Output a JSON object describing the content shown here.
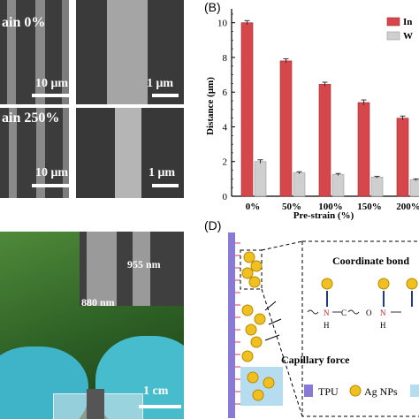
{
  "panel_a": {
    "strain_0_label": "ain 0%",
    "strain_250_label": "ain 250%",
    "scale_10um": "10 μm",
    "scale_1um": "1 μm"
  },
  "panel_c": {
    "dim_top": "955 nm",
    "dim_bottom": "880 nm",
    "scale_1cm": "1 cm"
  },
  "panel_d": {
    "label": "(D)",
    "coordinate_bond": "Coordinate bond",
    "capillary_force": "Capillary force",
    "legend_tpu": "TPU",
    "legend_ag": "Ag NPs",
    "atom_n": "N",
    "atom_h": "H",
    "atom_o": "O",
    "atom_c": "C"
  },
  "colors": {
    "red_bar": "#d6474c",
    "gray_bar": "#cfcfcf",
    "tpu_purple": "#8a7ad8",
    "ag_gold": "#f0c020",
    "glove_blue": "#3fb4c8"
  },
  "chart_data": {
    "type": "bar",
    "panel_label": "(B)",
    "categories": [
      "0%",
      "50%",
      "100%",
      "150%",
      "200%"
    ],
    "series": [
      {
        "name": "In",
        "color": "#d6474c",
        "values": [
          10.0,
          7.8,
          6.45,
          5.4,
          4.5
        ],
        "errors": [
          0.12,
          0.12,
          0.12,
          0.15,
          0.12
        ]
      },
      {
        "name": "W",
        "color": "#cfcfcf",
        "values": [
          2.0,
          1.35,
          1.25,
          1.1,
          0.95
        ],
        "errors": [
          0.1,
          0.06,
          0.06,
          0.05,
          0.05
        ]
      }
    ],
    "xlabel": "Pre-strain (%)",
    "ylabel": "Distance (μm)",
    "ylim": [
      0,
      10.8
    ],
    "yticks": [
      0,
      2,
      4,
      6,
      8,
      10
    ],
    "legend_position": "top-right"
  }
}
